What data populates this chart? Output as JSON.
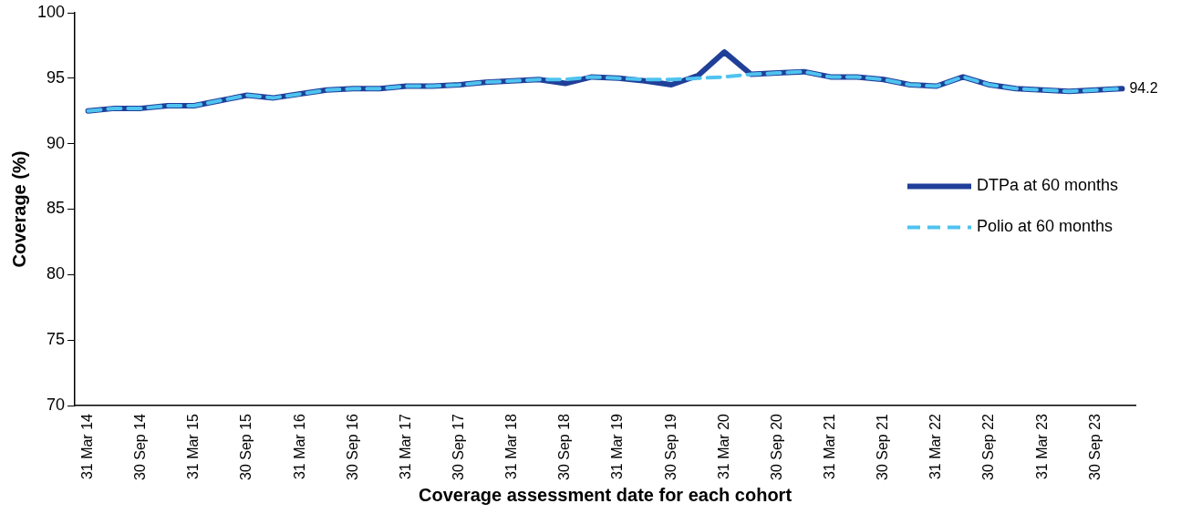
{
  "chart_data": {
    "type": "line",
    "xlabel": "Coverage assessment date for each cohort",
    "ylabel": "Coverage (%)",
    "categories": [
      "31 Mar 14",
      null,
      "30 Sep 14",
      null,
      "31 Mar 15",
      null,
      "30 Sep 15",
      null,
      "31 Mar 16",
      null,
      "30 Sep 16",
      null,
      "31 Mar 17",
      null,
      "30 Sep 17",
      null,
      "31 Mar 18",
      null,
      "30 Sep 18",
      null,
      "31 Mar 19",
      null,
      "30 Sep 19",
      null,
      "31 Mar 20",
      null,
      "30 Sep 20",
      null,
      "31 Mar 21",
      null,
      "30 Sep 21",
      null,
      "31 Mar 22",
      null,
      "30 Sep 22",
      null,
      "31 Mar 23",
      null,
      "30 Sep 23",
      null
    ],
    "series": [
      {
        "name": "DTPa at 60 months",
        "color": "#1f3f99",
        "line_style": "solid",
        "values": [
          92.5,
          92.7,
          92.7,
          92.9,
          92.9,
          93.3,
          93.7,
          93.5,
          93.8,
          94.1,
          94.2,
          94.2,
          94.4,
          94.4,
          94.5,
          94.7,
          94.8,
          94.9,
          94.6,
          95.1,
          95.0,
          94.8,
          94.5,
          95.2,
          97.0,
          95.3,
          95.4,
          95.5,
          95.1,
          95.1,
          94.9,
          94.5,
          94.4,
          95.1,
          94.5,
          94.2,
          94.1,
          94.0,
          94.1,
          94.2
        ],
        "value_labels": [
          null,
          null,
          null,
          null,
          null,
          null,
          null,
          null,
          null,
          null,
          null,
          null,
          null,
          null,
          null,
          null,
          null,
          null,
          null,
          null,
          null,
          null,
          null,
          null,
          null,
          null,
          null,
          null,
          null,
          null,
          null,
          null,
          null,
          null,
          null,
          null,
          null,
          null,
          null,
          "94.2"
        ]
      },
      {
        "name": "Polio at 60 months",
        "color": "#4fc3f0",
        "line_style": "dashed",
        "values": [
          92.5,
          92.7,
          92.7,
          92.9,
          92.9,
          93.3,
          93.7,
          93.5,
          93.8,
          94.1,
          94.2,
          94.2,
          94.4,
          94.4,
          94.5,
          94.7,
          94.8,
          94.9,
          94.9,
          95.1,
          95.0,
          94.9,
          94.9,
          95.0,
          95.1,
          95.3,
          95.4,
          95.5,
          95.1,
          95.1,
          94.9,
          94.5,
          94.4,
          95.1,
          94.5,
          94.2,
          94.1,
          94.0,
          94.1,
          94.2
        ]
      }
    ],
    "ylim": [
      70,
      100
    ],
    "yticks": [
      70,
      75,
      80,
      85,
      90,
      95,
      100
    ],
    "grid": false,
    "legend": "right",
    "marker": "none"
  }
}
